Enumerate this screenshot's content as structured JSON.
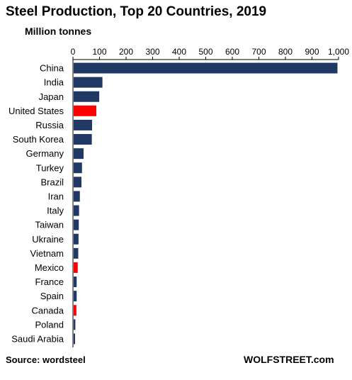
{
  "header": {
    "title": "Steel Production,  Top 20 Countries,  2019",
    "subtitle": "Million tonnes"
  },
  "footer": {
    "source": "Source: wordsteel",
    "brand": "WOLFSTREET.com"
  },
  "colors": {
    "bar": "#1f3864",
    "highlight": "#ff0000",
    "axis": "#000000"
  },
  "chart_data": {
    "type": "bar",
    "orientation": "horizontal",
    "title": "Steel Production,  Top 20 Countries,  2019",
    "subtitle": "Million tonnes",
    "xlabel": "",
    "ylabel": "",
    "xlim": [
      0,
      1000
    ],
    "x_ticks": [
      "0",
      "100",
      "200",
      "300",
      "400",
      "500",
      "600",
      "700",
      "800",
      "900",
      "1,000"
    ],
    "x_tick_values": [
      0,
      100,
      200,
      300,
      400,
      500,
      600,
      700,
      800,
      900,
      1000
    ],
    "grid": false,
    "legend": "none",
    "categories": [
      "China",
      "India",
      "Japan",
      "United States",
      "Russia",
      "South Korea",
      "Germany",
      "Turkey",
      "Brazil",
      "Iran",
      "Italy",
      "Taiwan",
      "Ukraine",
      "Vietnam",
      "Mexico",
      "France",
      "Spain",
      "Canada",
      "Poland",
      "Saudi Arabia"
    ],
    "values": [
      996,
      111,
      99,
      88,
      72,
      71,
      40,
      34,
      32,
      26,
      23,
      22,
      21,
      20,
      18,
      14,
      14,
      13,
      9,
      8
    ],
    "highlighted": [
      "United States",
      "Mexico",
      "Canada"
    ]
  }
}
